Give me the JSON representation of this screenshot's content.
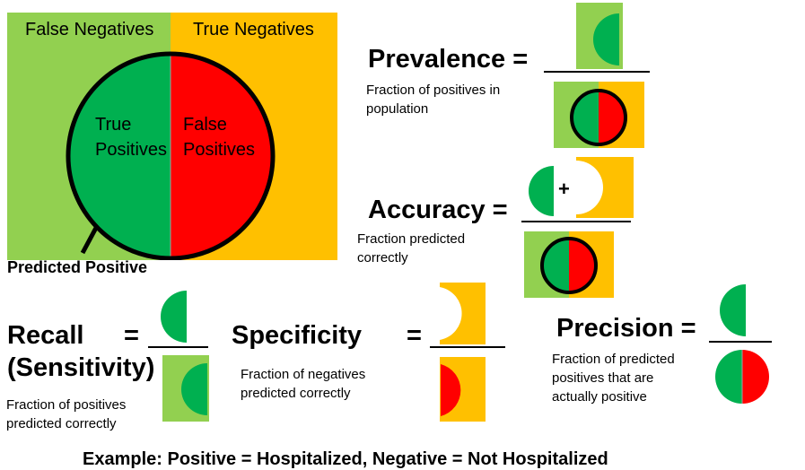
{
  "colors": {
    "green_light": "#92d050",
    "gold": "#ffc000",
    "green_dark": "#00b050",
    "red": "#ff0000",
    "black": "#000000"
  },
  "venn": {
    "false_negatives": "False Negatives",
    "true_negatives": "True Negatives",
    "true_positives_line1": "True",
    "true_positives_line2": "Positives",
    "false_positives_line1": "False",
    "false_positives_line2": "Positives",
    "predicted_positive": "Predicted Positive"
  },
  "prevalence": {
    "title": "Prevalence =",
    "desc_line1": "Fraction of positives in",
    "desc_line2": "population"
  },
  "accuracy": {
    "title": "Accuracy =",
    "plus": "+",
    "desc_line1": "Fraction predicted",
    "desc_line2": "correctly"
  },
  "recall": {
    "title_line1": "Recall",
    "equals": "=",
    "title_line2": "(Sensitivity)",
    "desc_line1": "Fraction of positives",
    "desc_line2": "predicted correctly"
  },
  "specificity": {
    "title": "Specificity",
    "equals": "=",
    "desc_line1": "Fraction of negatives",
    "desc_line2": "predicted correctly"
  },
  "precision": {
    "title": "Precision =",
    "desc_line1": "Fraction of predicted",
    "desc_line2": "positives that are",
    "desc_line3": "actually positive"
  },
  "footer": "Example: Positive = Hospitalized, Negative = Not Hospitalized"
}
